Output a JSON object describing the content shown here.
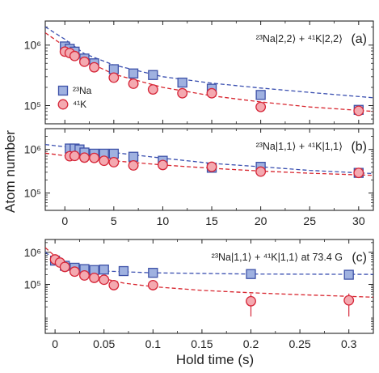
{
  "figure": {
    "ylabel": "Atom number",
    "xlabel_bottom": "Hold time (s)"
  },
  "colors": {
    "na_fill": "#9fb1e0",
    "na_edge": "#3e52a8",
    "k_fill": "#f4a9b0",
    "k_edge": "#d6283a",
    "na_fit": "#3a4fb0",
    "k_fit": "#d8262f",
    "axis": "#222222"
  },
  "chart_data": [
    {
      "type": "scatter",
      "panel_tag": "(a)",
      "annotation": "²³Na|2,2⟩ + ⁴¹K|2,2⟩",
      "xlim": [
        -2,
        31.5
      ],
      "ylim": [
        50000,
        2500000
      ],
      "yscale": "log",
      "xticks": [
        0,
        5,
        10,
        15,
        20,
        25,
        30
      ],
      "xticklabels_shown": false,
      "yticks": [
        100000,
        1000000
      ],
      "yticklabels": [
        "10⁵",
        "10⁶"
      ],
      "legend": {
        "placement": "center-left",
        "entries": [
          "²³Na",
          "⁴¹K"
        ]
      },
      "series": [
        {
          "name": "²³Na",
          "x": [
            0,
            0.5,
            1,
            2,
            3,
            5,
            7,
            9,
            12,
            15,
            20,
            30
          ],
          "y": [
            950000,
            870000,
            780000,
            600000,
            500000,
            400000,
            340000,
            320000,
            240000,
            190000,
            150000,
            85000
          ]
        },
        {
          "name": "⁴¹K",
          "x": [
            0,
            0.5,
            1,
            2,
            3,
            5,
            7,
            9,
            12,
            15,
            20,
            30
          ],
          "y": [
            780000,
            740000,
            660000,
            530000,
            430000,
            290000,
            230000,
            185000,
            160000,
            160000,
            95000,
            82000
          ]
        }
      ],
      "fits": [
        {
          "name": "²³Na",
          "x": [
            -2,
            0,
            2,
            5,
            10,
            15,
            20,
            25,
            31.5
          ],
          "y": [
            2000000,
            1250000,
            720000,
            470000,
            300000,
            235000,
            195000,
            165000,
            135000
          ]
        },
        {
          "name": "⁴¹K",
          "x": [
            -2,
            0,
            2,
            5,
            10,
            15,
            20,
            25,
            31.5
          ],
          "y": [
            1600000,
            950000,
            560000,
            330000,
            200000,
            145000,
            115000,
            95000,
            80000
          ]
        }
      ]
    },
    {
      "type": "scatter",
      "panel_tag": "(b)",
      "annotation": "²³Na|1,1⟩ + ⁴¹K|1,1⟩",
      "xlim": [
        -2,
        31.5
      ],
      "ylim": [
        40000,
        3000000
      ],
      "yscale": "log",
      "xticks": [
        0,
        5,
        10,
        15,
        20,
        25,
        30
      ],
      "xticklabels": [
        "0",
        "5",
        "10",
        "15",
        "20",
        "25",
        "30"
      ],
      "yticks": [
        100000,
        1000000
      ],
      "yticklabels": [
        "10⁵",
        "10⁶"
      ],
      "series": [
        {
          "name": "²³Na",
          "x": [
            0.5,
            1,
            1.5,
            2,
            3,
            4,
            5,
            7,
            10,
            15,
            20,
            30
          ],
          "y": [
            1050000,
            1050000,
            1000000,
            850000,
            800000,
            800000,
            800000,
            680000,
            550000,
            380000,
            400000,
            290000
          ]
        },
        {
          "name": "⁴¹K",
          "x": [
            0.5,
            1,
            2,
            3,
            4,
            5,
            7,
            10,
            15,
            20,
            30
          ],
          "y": [
            700000,
            710000,
            650000,
            640000,
            550000,
            510000,
            430000,
            440000,
            400000,
            310000,
            290000
          ]
        }
      ],
      "fits": [
        {
          "name": "²³Na",
          "x": [
            -2,
            0,
            5,
            10,
            15,
            20,
            25,
            31.5
          ],
          "y": [
            1300000,
            1150000,
            850000,
            630000,
            480000,
            400000,
            330000,
            280000
          ]
        },
        {
          "name": "⁴¹K",
          "x": [
            -2,
            0,
            5,
            10,
            15,
            20,
            25,
            31.5
          ],
          "y": [
            820000,
            720000,
            550000,
            440000,
            370000,
            320000,
            285000,
            255000
          ]
        }
      ]
    },
    {
      "type": "scatter",
      "panel_tag": "(c)",
      "annotation": "²³Na|1,1⟩ + ⁴¹K|1,1⟩ at 73.4 G",
      "xlabel": "Hold time (s)",
      "xlim": [
        -0.01,
        0.325
      ],
      "ylim": [
        3000,
        2500000
      ],
      "yscale": "log",
      "xticks": [
        0,
        0.05,
        0.1,
        0.15,
        0.2,
        0.25,
        0.3
      ],
      "xticklabels": [
        "0",
        "0.05",
        "0.1",
        "0.15",
        "0.2",
        "0.25",
        "0.3"
      ],
      "yticks": [
        100000,
        1000000
      ],
      "yticklabels": [
        "10⁵",
        "10⁶"
      ],
      "series": [
        {
          "name": "²³Na",
          "x": [
            0,
            0.01,
            0.02,
            0.03,
            0.04,
            0.05,
            0.07,
            0.1,
            0.2,
            0.3
          ],
          "y": [
            550000,
            380000,
            330000,
            300000,
            280000,
            290000,
            260000,
            230000,
            210000,
            200000
          ]
        },
        {
          "name": "⁴¹K",
          "x": [
            0,
            0.005,
            0.01,
            0.02,
            0.03,
            0.04,
            0.05,
            0.06,
            0.1,
            0.2,
            0.3
          ],
          "y": [
            600000,
            480000,
            350000,
            250000,
            190000,
            160000,
            140000,
            95000,
            95000,
            30000,
            32000
          ],
          "yerr_low": [
            0,
            0,
            0,
            0,
            0,
            0,
            40000,
            0,
            30000,
            20000,
            22000
          ],
          "yerr_high": [
            0,
            0,
            0,
            0,
            0,
            0,
            30000,
            0,
            25000,
            20000,
            20000
          ]
        }
      ],
      "fits": [
        {
          "name": "²³Na",
          "x": [
            -0.01,
            0,
            0.01,
            0.02,
            0.03,
            0.05,
            0.1,
            0.2,
            0.325
          ],
          "y": [
            1000000,
            600000,
            400000,
            320000,
            290000,
            260000,
            230000,
            210000,
            205000
          ]
        },
        {
          "name": "⁴¹K",
          "x": [
            -0.01,
            0,
            0.01,
            0.02,
            0.03,
            0.05,
            0.07,
            0.1,
            0.15,
            0.2,
            0.25,
            0.325
          ],
          "y": [
            1400000,
            750000,
            480000,
            330000,
            240000,
            150000,
            110000,
            85000,
            65000,
            55000,
            48000,
            40000
          ]
        }
      ]
    }
  ]
}
